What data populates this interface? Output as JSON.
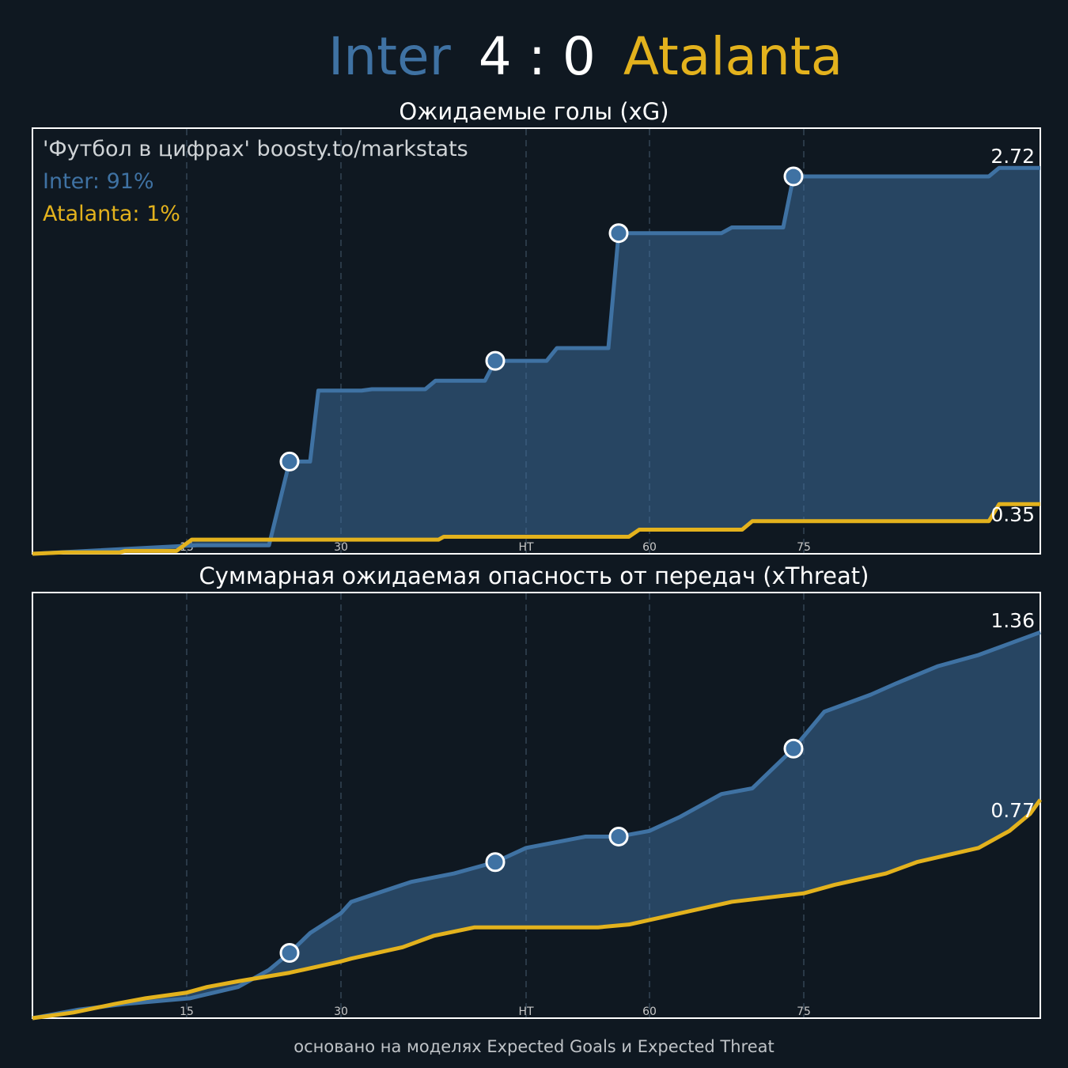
{
  "header": {
    "home": "Inter",
    "score": "4 : 0",
    "away": "Atalanta"
  },
  "footer": "основано на моделях Expected Goals и Expected Threat",
  "chart_data": [
    {
      "type": "line",
      "title": "Ожидаемые голы (xG)",
      "annotations": [
        "'Футбол в цифрах' boosty.to/markstats",
        "Inter: 91%",
        "Atalanta: 1%"
      ],
      "xlim": [
        0,
        98
      ],
      "ylim": [
        0,
        3
      ],
      "xticks": [
        15,
        30,
        {
          "value": 48,
          "label": "HT"
        },
        60,
        75
      ],
      "grid": true,
      "series": [
        {
          "color": "#3f72a3",
          "x": [
            0,
            16,
            23,
            25,
            27,
            27.8,
            32,
            33,
            38.2,
            39.2,
            44,
            45,
            50,
            51,
            56,
            57,
            67,
            68,
            73,
            74,
            93,
            94,
            98
          ],
          "values": [
            0,
            0.06,
            0.06,
            0.65,
            0.65,
            1.15,
            1.15,
            1.16,
            1.16,
            1.22,
            1.22,
            1.36,
            1.36,
            1.45,
            1.45,
            2.26,
            2.26,
            2.3,
            2.3,
            2.66,
            2.66,
            2.72,
            2.72
          ]
        },
        {
          "color": "#e3b21d",
          "x": [
            0,
            3,
            8.5,
            9,
            14,
            15.5,
            39.5,
            40,
            58,
            59,
            69,
            70,
            93,
            94,
            98
          ],
          "values": [
            0,
            0.01,
            0.01,
            0.02,
            0.02,
            0.1,
            0.1,
            0.12,
            0.12,
            0.17,
            0.17,
            0.23,
            0.23,
            0.35,
            0.35
          ]
        }
      ],
      "markers": {
        "x": [
          25,
          45,
          57,
          74
        ],
        "values": [
          0.65,
          1.36,
          2.26,
          2.66
        ]
      }
    },
    {
      "type": "line",
      "title": "Суммарная ожидаемая опасность от передач (xThreat)",
      "xlim": [
        0,
        98
      ],
      "ylim": [
        0,
        1.5
      ],
      "xticks": [
        15,
        30,
        {
          "value": 48,
          "label": "HT"
        },
        60,
        75
      ],
      "grid": true,
      "series": [
        {
          "color": "#3f72a3",
          "x": [
            0,
            4.5,
            9,
            15.3,
            20,
            23,
            25,
            27,
            30,
            31,
            36.8,
            41,
            45,
            48,
            53.8,
            57,
            60,
            63,
            67,
            70,
            74,
            77,
            81.5,
            84,
            88,
            92,
            98
          ],
          "values": [
            0,
            0.03,
            0.05,
            0.07,
            0.11,
            0.17,
            0.23,
            0.3,
            0.37,
            0.41,
            0.48,
            0.51,
            0.55,
            0.6,
            0.64,
            0.64,
            0.66,
            0.71,
            0.79,
            0.81,
            0.95,
            1.08,
            1.14,
            1.18,
            1.24,
            1.28,
            1.36
          ]
        },
        {
          "color": "#e3b21d",
          "x": [
            0,
            4,
            8,
            11,
            15,
            17,
            20,
            25,
            30,
            31,
            36,
            39,
            43,
            46,
            55,
            58,
            63,
            68,
            75,
            78,
            83,
            86,
            92,
            95,
            97,
            98
          ],
          "values": [
            0,
            0.02,
            0.05,
            0.07,
            0.09,
            0.11,
            0.13,
            0.16,
            0.2,
            0.21,
            0.25,
            0.29,
            0.32,
            0.32,
            0.32,
            0.33,
            0.37,
            0.41,
            0.44,
            0.47,
            0.51,
            0.55,
            0.6,
            0.66,
            0.72,
            0.77
          ]
        }
      ],
      "markers": {
        "x": [
          25,
          45,
          57,
          74
        ],
        "values": [
          0.23,
          0.55,
          0.64,
          0.95
        ]
      }
    }
  ]
}
